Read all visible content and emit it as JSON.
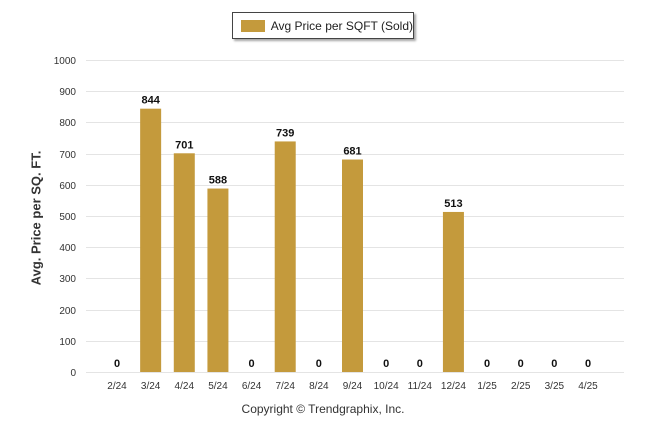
{
  "legend": {
    "label": "Avg Price per SQFT (Sold)",
    "color": "#C49A3C"
  },
  "footer": {
    "copyright": "Copyright © Trendgraphix, Inc."
  },
  "chart_data": {
    "type": "bar",
    "title": "",
    "xlabel": "",
    "ylabel": "Avg. Price per SQ. FT.",
    "ylim": [
      0,
      1000
    ],
    "yticks": [
      0,
      100,
      200,
      300,
      400,
      500,
      600,
      700,
      800,
      900,
      1000
    ],
    "grid": true,
    "legend_position": "top-center",
    "categories": [
      "2/24",
      "3/24",
      "4/24",
      "5/24",
      "6/24",
      "7/24",
      "8/24",
      "9/24",
      "10/24",
      "11/24",
      "12/24",
      "1/25",
      "2/25",
      "3/25",
      "4/25"
    ],
    "series": [
      {
        "name": "Avg Price per SQFT (Sold)",
        "color": "#C49A3C",
        "values": [
          0,
          844,
          701,
          588,
          0,
          739,
          0,
          681,
          0,
          0,
          513,
          0,
          0,
          0,
          0
        ]
      }
    ]
  }
}
